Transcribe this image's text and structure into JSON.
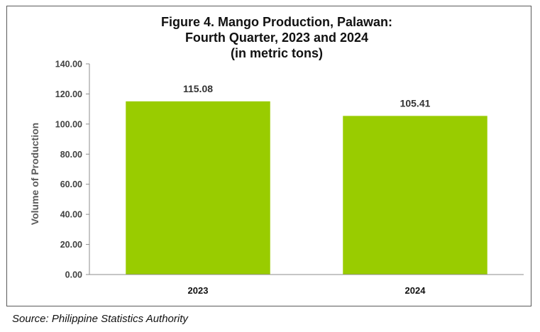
{
  "chart_data": {
    "type": "bar",
    "title_lines": [
      "Figure 4. Mango Production, Palawan:",
      "Fourth Quarter, 2023 and 2024",
      "(in metric tons)"
    ],
    "categories": [
      "2023",
      "2024"
    ],
    "values": [
      115.08,
      105.41
    ],
    "value_labels": [
      "115.08",
      "105.41"
    ],
    "ylabel": "Volume of Production",
    "xlabel": "",
    "ylim": [
      0,
      140
    ],
    "yticks": [
      "0.00",
      "20.00",
      "40.00",
      "60.00",
      "80.00",
      "100.00",
      "120.00",
      "140.00"
    ],
    "bar_color": "#99CC00",
    "grid": false,
    "legend": "none"
  },
  "source": "Source: Philippine Statistics Authority"
}
